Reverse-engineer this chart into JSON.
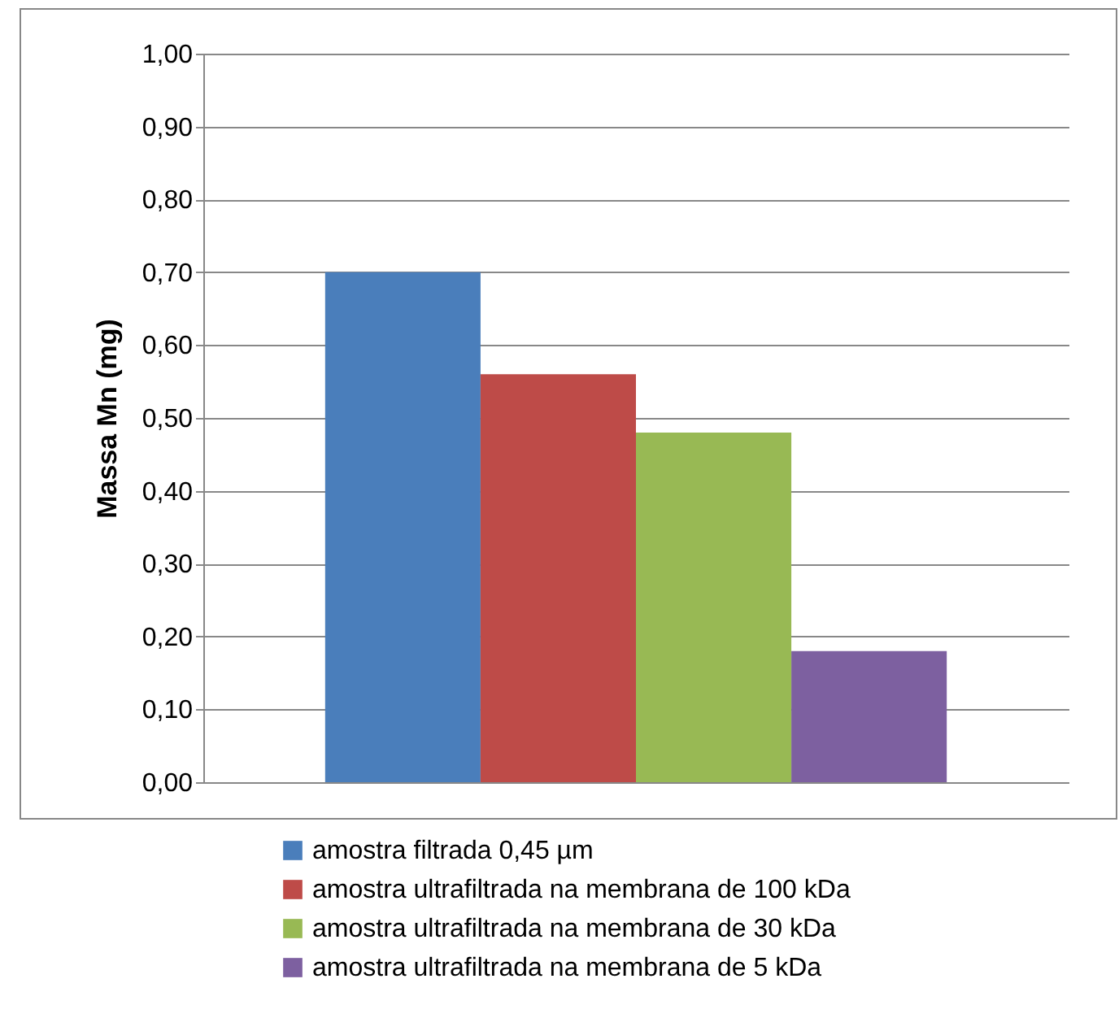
{
  "chart_data": {
    "type": "bar",
    "ylabel": "Massa Mn (mg)",
    "categories": [
      null
    ],
    "series": [
      {
        "name": "amostra filtrada 0,45 µm",
        "color": "#4a7ebb",
        "values": [
          0.7
        ]
      },
      {
        "name": "amostra ultrafiltrada na membrana de 100 kDa",
        "color": "#be4b48",
        "values": [
          0.56
        ]
      },
      {
        "name": "amostra ultrafiltrada na membrana de 30 kDa",
        "color": "#98b954",
        "values": [
          0.48
        ]
      },
      {
        "name": "amostra ultrafiltrada na membrana de 5 kDa",
        "color": "#7d60a0",
        "values": [
          0.18
        ]
      }
    ],
    "ylim": [
      0,
      1
    ],
    "yticks": [
      {
        "value": 0,
        "label": "0,00"
      },
      {
        "value": 0.1,
        "label": "0,10"
      },
      {
        "value": 0.2,
        "label": "0,20"
      },
      {
        "value": 0.3,
        "label": "0,30"
      },
      {
        "value": 0.4,
        "label": "0,40"
      },
      {
        "value": 0.5,
        "label": "0,50"
      },
      {
        "value": 0.6,
        "label": "0,60"
      },
      {
        "value": 0.7,
        "label": "0,70"
      },
      {
        "value": 0.8,
        "label": "0,80"
      },
      {
        "value": 0.9,
        "label": "0,90"
      },
      {
        "value": 1.0,
        "label": "1,00"
      }
    ],
    "grid": "y",
    "legend": "bottom"
  }
}
